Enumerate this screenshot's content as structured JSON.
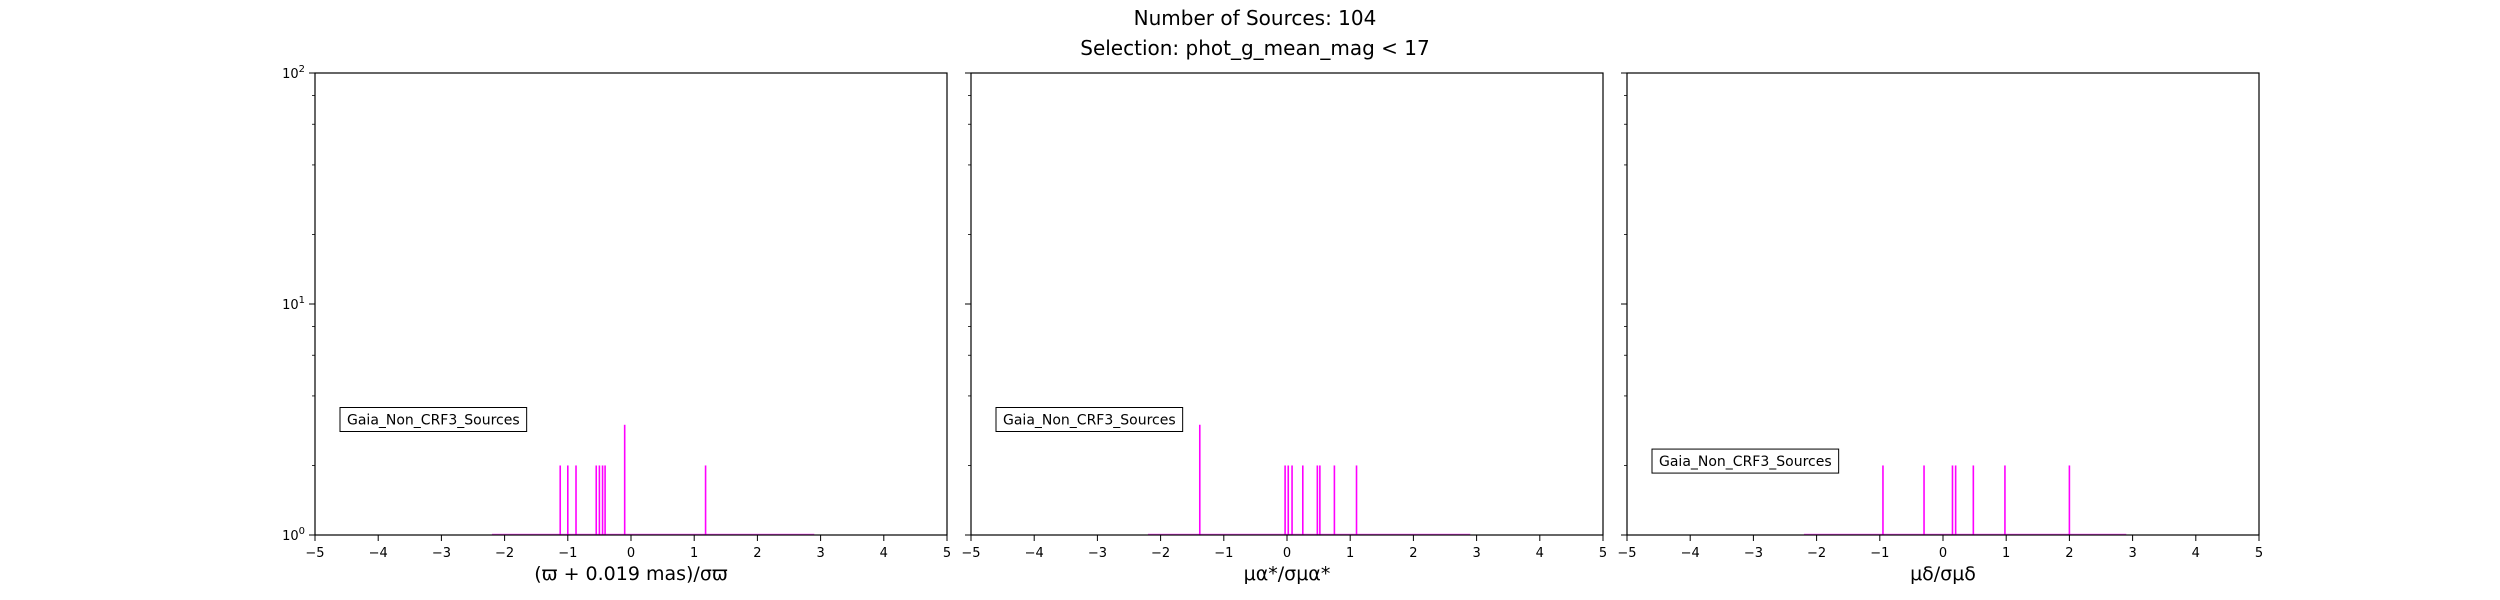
{
  "figure": {
    "title": "Number of Sources: 104",
    "subtitle": "Selection: phot_g_mean_mag < 17",
    "colors": {
      "bars": "#ff00ff",
      "axes": "#000000",
      "background": "#ffffff"
    }
  },
  "chart_data": [
    {
      "type": "bar",
      "xlabel": "(ϖ + 0.019 mas)/σϖ",
      "ylabel": "",
      "xlim": [
        -5,
        5
      ],
      "ylim": [
        1,
        100
      ],
      "yscale": "log",
      "x_ticks": [
        -5,
        -4,
        -3,
        -2,
        -1,
        0,
        1,
        2,
        3,
        4,
        5
      ],
      "y_ticks": [
        "10^0",
        "10^1",
        "10^2"
      ],
      "grid": false,
      "legend": {
        "label": "Gaia_Non_CRF3_Sources",
        "placement": "center-left"
      },
      "series": [
        {
          "x": [
            -1.12,
            -1.0,
            -0.87,
            -0.55,
            -0.5,
            -0.45,
            -0.41,
            -0.1,
            1.18
          ],
          "values": [
            2,
            2,
            2,
            2,
            2,
            2,
            2,
            3,
            2
          ]
        }
      ]
    },
    {
      "type": "bar",
      "xlabel": "μα*/σμα*",
      "ylabel": "",
      "xlim": [
        -5,
        5
      ],
      "ylim": [
        1,
        100
      ],
      "yscale": "log",
      "x_ticks": [
        -5,
        -4,
        -3,
        -2,
        -1,
        0,
        1,
        2,
        3,
        4,
        5
      ],
      "y_ticks": [
        "10^0",
        "10^1",
        "10^2"
      ],
      "grid": false,
      "legend": {
        "label": "Gaia_Non_CRF3_Sources",
        "placement": "center-left"
      },
      "series": [
        {
          "x": [
            -1.38,
            -0.03,
            0.02,
            0.08,
            0.25,
            0.48,
            0.52,
            0.75,
            1.1
          ],
          "values": [
            3,
            2,
            2,
            2,
            2,
            2,
            2,
            2,
            2
          ]
        }
      ]
    },
    {
      "type": "bar",
      "xlabel": "μδ/σμδ",
      "ylabel": "",
      "xlim": [
        -5,
        5
      ],
      "ylim": [
        1,
        100
      ],
      "yscale": "log",
      "x_ticks": [
        -5,
        -4,
        -3,
        -2,
        -1,
        0,
        1,
        2,
        3,
        4,
        5
      ],
      "y_ticks": [
        "10^0",
        "10^1",
        "10^2"
      ],
      "grid": false,
      "legend": {
        "label": "Gaia_Non_CRF3_Sources",
        "placement": "lower-left"
      },
      "series": [
        {
          "x": [
            -0.95,
            -0.3,
            0.15,
            0.2,
            0.48,
            0.98,
            2.0
          ],
          "values": [
            2,
            2,
            2,
            2,
            2,
            2,
            2
          ]
        }
      ]
    }
  ]
}
